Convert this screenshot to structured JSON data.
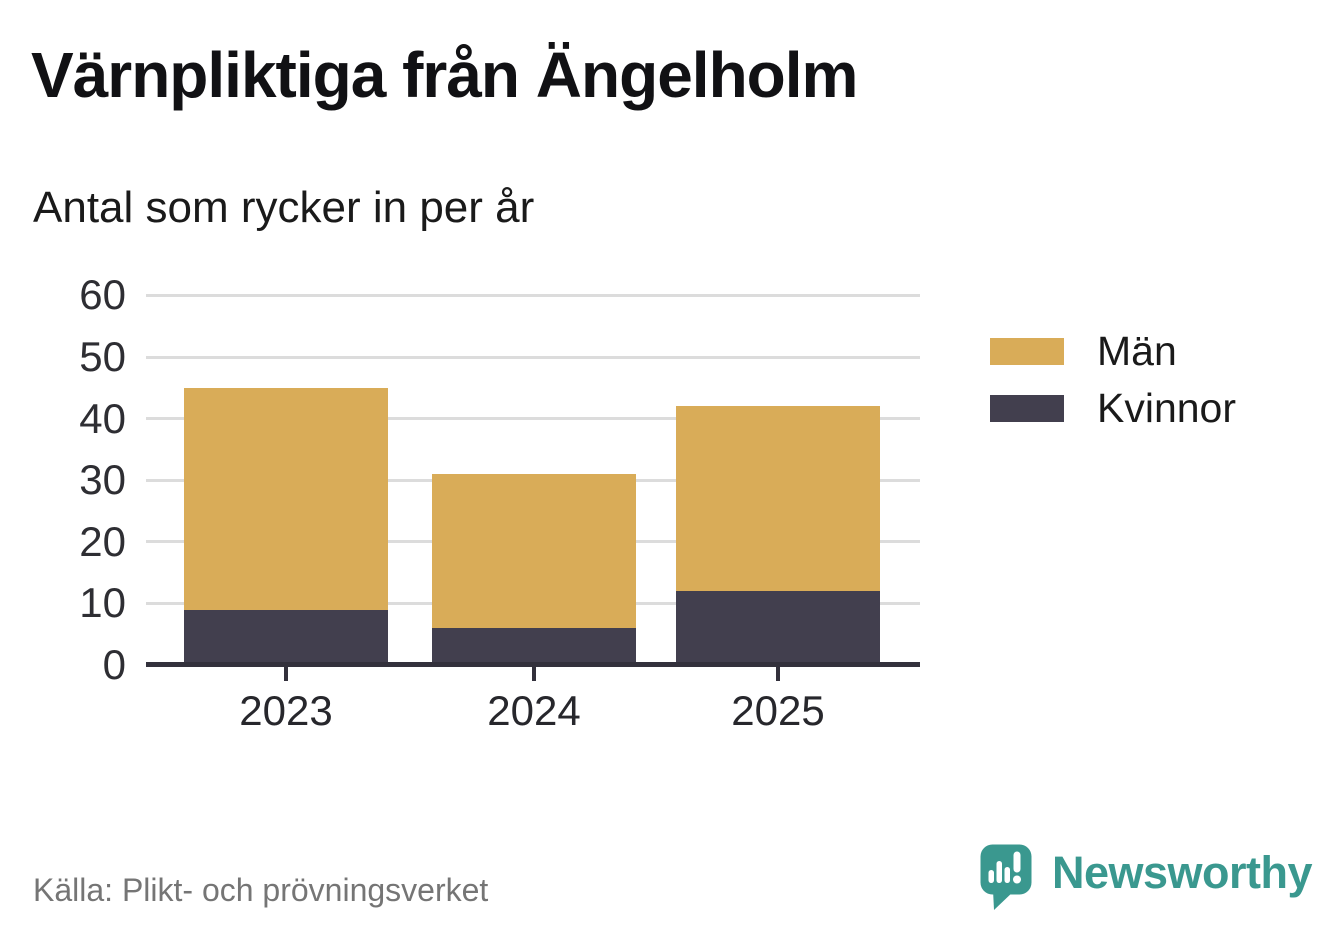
{
  "title": "Värnpliktiga från Ängelholm",
  "subtitle": "Antal som rycker in per år",
  "source": "Källa: Plikt- och prövningsverket",
  "brand": {
    "name": "Newsworthy",
    "color": "#3a988f",
    "logo_icon": "speech-bubble-bar-chart-icon"
  },
  "colors": {
    "men": "#d9ac58",
    "women": "#423f4e",
    "grid": "#dcdcdc",
    "axis": "#33313c",
    "tick_text": "#2e2e33",
    "title_text": "#111114",
    "muted_text": "#757575"
  },
  "legend": {
    "position": "right",
    "items": [
      {
        "label": "Män",
        "color": "#d9ac58"
      },
      {
        "label": "Kvinnor",
        "color": "#423f4e"
      }
    ]
  },
  "chart_data": {
    "type": "bar",
    "stacked": true,
    "title": "Värnpliktiga från Ängelholm",
    "subtitle": "Antal som rycker in per år",
    "categories": [
      "2023",
      "2024",
      "2025"
    ],
    "series": [
      {
        "name": "Kvinnor",
        "color": "#423f4e",
        "values": [
          9,
          6,
          12
        ]
      },
      {
        "name": "Män",
        "color": "#d9ac58",
        "values": [
          36,
          25,
          30
        ]
      }
    ],
    "totals": [
      45,
      31,
      42
    ],
    "xlabel": "",
    "ylabel": "",
    "ylim": [
      0,
      60
    ],
    "yticks": [
      0,
      10,
      20,
      30,
      40,
      50,
      60
    ],
    "grid": true,
    "legend_position": "right",
    "source": "Källa: Plikt- och prövningsverket"
  }
}
